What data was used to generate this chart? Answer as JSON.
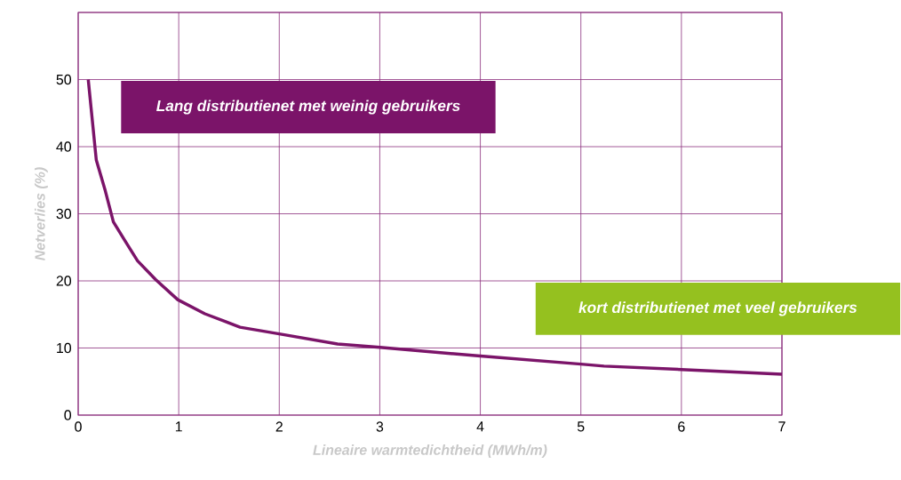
{
  "chart_data": {
    "type": "line",
    "xlabel": "Lineaire warmtedichtheid (MWh/m)",
    "ylabel": "Netverlies (%)",
    "xlim": [
      0,
      7
    ],
    "ylim": [
      0,
      60
    ],
    "xticks": [
      0,
      1,
      2,
      3,
      4,
      5,
      6,
      7
    ],
    "yticks": [
      0,
      10,
      20,
      30,
      40,
      50,
      {
        "value": 60,
        "label": null
      }
    ],
    "grid": true,
    "marker": "none",
    "line_style": "solid",
    "series": [
      {
        "color": "#7b1469",
        "x": [
          0.1,
          0.18,
          0.27,
          0.35,
          0.46,
          0.59,
          0.77,
          0.99,
          1.26,
          1.61,
          2,
          2.58,
          3,
          4,
          5,
          5.23,
          6,
          7
        ],
        "values": [
          50,
          38,
          33.4,
          28.8,
          26.1,
          23,
          20.2,
          17.2,
          15.1,
          13.1,
          12.1,
          10.6,
          10.1,
          8.8,
          7.6,
          7.3,
          6.8,
          6.1
        ]
      }
    ],
    "annotations": [
      "Lang distributienet met weinig gebruikers",
      "kort distributienet met veel gebruikers"
    ]
  }
}
